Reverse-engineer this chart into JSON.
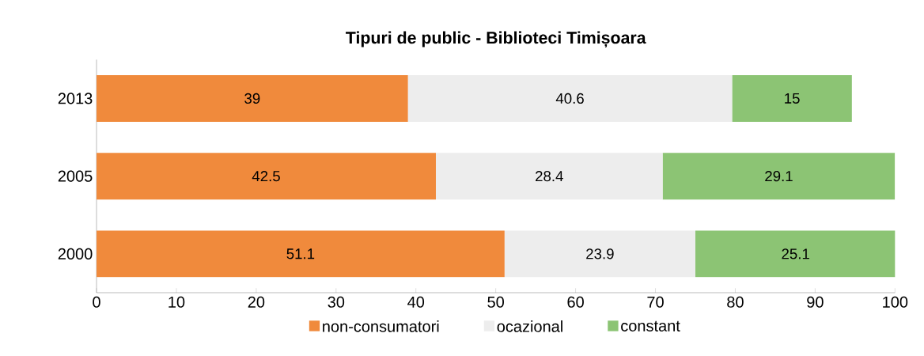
{
  "chart_data": {
    "type": "bar",
    "orientation": "horizontal",
    "stacked": true,
    "title": "Tipuri de public - Biblioteci Timișoara",
    "categories": [
      "2013",
      "2005",
      "2000"
    ],
    "series": [
      {
        "name": "non-consumatori",
        "color": "#f08a3c",
        "values": [
          39,
          42.5,
          51.1
        ]
      },
      {
        "name": "ocazional",
        "color": "#ededed",
        "values": [
          40.6,
          28.4,
          23.9
        ]
      },
      {
        "name": "constant",
        "color": "#8cc474",
        "values": [
          15,
          29.1,
          25.1
        ]
      }
    ],
    "xlim": [
      0,
      100
    ],
    "xticks": [
      0,
      10,
      20,
      30,
      40,
      50,
      60,
      70,
      80,
      90,
      100
    ],
    "data_labels": true,
    "legend": "bottom",
    "grid": false
  }
}
